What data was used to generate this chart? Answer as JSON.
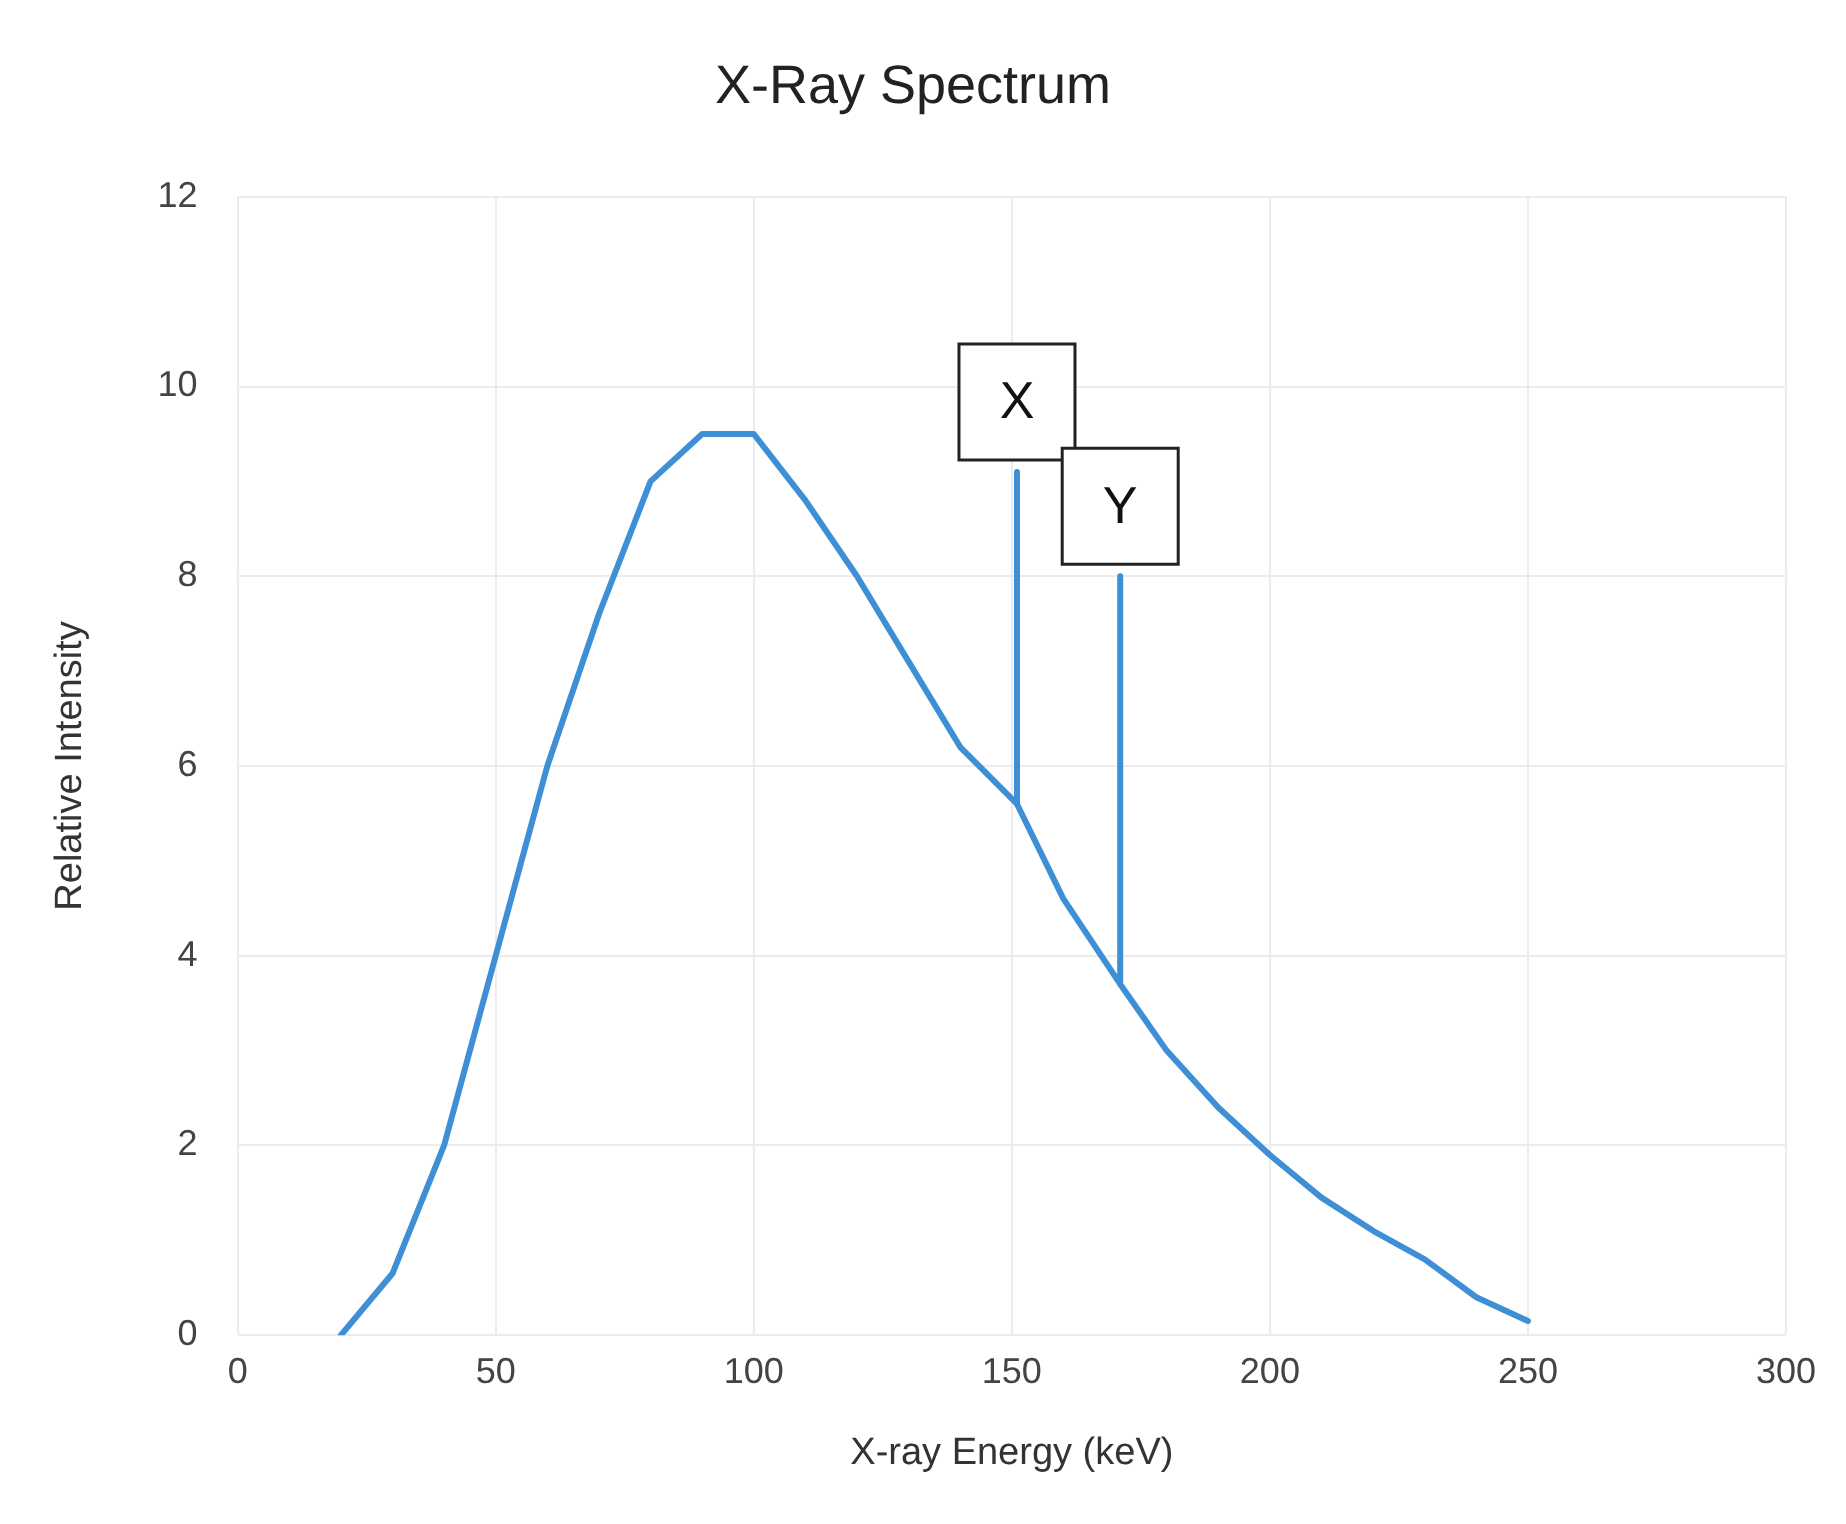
{
  "chart_data": {
    "type": "line",
    "title": "X-Ray Spectrum",
    "xlabel": "X-ray Energy (keV)",
    "ylabel": "Relative Intensity",
    "series": [
      {
        "color": "#3f8fd6",
        "x": [
          20,
          30,
          40,
          50,
          60,
          70,
          80,
          90,
          100,
          110,
          120,
          130,
          140,
          151,
          151,
          151,
          160,
          171,
          171,
          171,
          180,
          190,
          200,
          210,
          220,
          230,
          240,
          250
        ],
        "values": [
          0,
          0.65,
          2,
          4,
          6,
          7.6,
          9,
          9.5,
          9.5,
          8.8,
          8,
          7.1,
          6.2,
          5.6,
          9.1,
          5.6,
          4.6,
          3.7,
          8,
          3.7,
          3,
          2.4,
          1.9,
          1.45,
          1.1,
          0.8,
          0.4,
          0.15
        ]
      }
    ],
    "xlim": [
      0,
      300
    ],
    "xticks": [
      0,
      50,
      100,
      150,
      200,
      250,
      300
    ],
    "ylim": [
      0,
      12
    ],
    "yticks": [
      0,
      2,
      4,
      6,
      8,
      10,
      12
    ],
    "grid": true,
    "marker": "none",
    "line_style": "solid",
    "annotations": [
      {
        "text": "X",
        "x": 151,
        "y": 9.1
      },
      {
        "text": "Y",
        "x": 171,
        "y": 8
      }
    ]
  }
}
